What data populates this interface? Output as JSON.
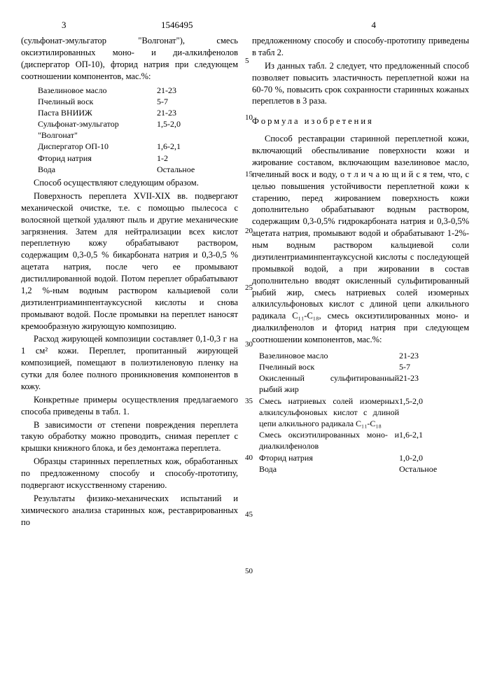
{
  "page_left_num": "3",
  "page_right_num": "4",
  "doc_number": "1546495",
  "line_markers": [
    "5",
    "10",
    "15",
    "20",
    "25",
    "30",
    "35",
    "40",
    "45",
    "50"
  ],
  "left": {
    "p1": "(сульфонат-эмульгатор \"Волгонат\"), смесь оксиэтилированных моно- и ди-алкилфенолов (диспергатор ОП-10), фторид натрия при следующем соотношении компонентов, мас.%:",
    "table1": [
      {
        "label": "Вазелиновое масло",
        "val": "21-23"
      },
      {
        "label": "Пчелиный воск",
        "val": "5-7"
      },
      {
        "label": "Паста ВНИИЖ",
        "val": "21-23"
      },
      {
        "label": "Сульфонат-эмульгатор \"Волгонат\"",
        "val": "1,5-2,0"
      },
      {
        "label": "Диспергатор ОП-10",
        "val": "1,6-2,1"
      },
      {
        "label": "Фторид натрия",
        "val": "1-2"
      },
      {
        "label": "Вода",
        "val": "Остальное"
      }
    ],
    "p2": "Способ осуществляют следующим образом.",
    "p3": "Поверхность переплета XVII-XIX вв. подвергают механической очистке, т.е. с помощью пылесоса с волосяной щеткой удаляют пыль и другие механические загрязнения. Затем для нейтрализации всех кислот переплетную кожу обрабатывают раствором, содержащим 0,3-0,5 % бикарбоната натрия и 0,3-0,5 % ацетата натрия, после чего ее промывают дистиллированной водой. Потом переплет обрабатывают 1,2 %-ным водным раствором кальциевой соли диэтилентриаминпентауксусной кислоты и снова промывают водой. После промывки на переплет наносят кремообразную жирующую композицию.",
    "p4": "Расход жирующей композиции составляет 0,1-0,3 г на 1 см² кожи. Переплет, пропитанный жирующей композицией, помещают в полиэтиленовую пленку на сутки для более полного проникновения компонентов в кожу.",
    "p5": "Конкретные примеры осуществления предлагаемого способа приведены в табл. 1.",
    "p6": "В зависимости от степени повреждения переплета такую обработку можно проводить, снимая переплет с крышки книжного блока, и без демонтажа переплета.",
    "p7": "Образцы старинных переплетных кож, обработанных по предложенному способу и способу-прототипу, подвергают искусственному старению.",
    "p8": "Результаты физико-механических испытаний и химического анализа старинных кож, реставрированных по"
  },
  "right": {
    "p1": "предложенному способу и способу-прототипу приведены в табл 2.",
    "p2": "Из данных табл. 2 следует, что предложенный способ позволяет повысить эластичность переплетной кожи на 60-70 %, повысить срок сохранности старинных кожаных переплетов в 3 раза.",
    "formula_header": "Формула изобретения",
    "p3": "Способ реставрации старинной переплетной кожи, включающий обеспыливание поверхности кожи и жирование составом, включающим вазелиновое масло, пчелиный воск и воду, о т л и ч а ю щ и й с я тем, что, с целью повышения устойчивости переплетной кожи к старению, перед жированием поверхность кожи дополнительно обрабатывают водным раствором, содержащим 0,3-0,5% гидрокарбоната натрия и 0,3-0,5% ацетата натрия, промывают водой и обрабатывают 1-2%-ным водным раствором кальциевой соли диэтилентриаминпентауксусной кислоты с последующей промывкой водой, а при жировании в состав дополнительно вводят окисленный сульфитированный рыбий жир, смесь натриевых солей изомерных алкилсульфоновых кислот с длиной цепи алкильного радикала C₁₁-C₁₈, смесь оксиэтилированных моно- и диалкилфенолов и фторид натрия при следующем соотношении компонентов, мас.%:",
    "table2": [
      {
        "label": "Вазелиновое масло",
        "val": "21-23"
      },
      {
        "label": "Пчелиный воск",
        "val": "5-7"
      },
      {
        "label": "Окисленный сульфитированный рыбий жир",
        "val": "21-23"
      },
      {
        "label": "Смесь натриевых солей изомерных алкилсульфоновых кислот с длиной цепи алкильного радикала C₁₁-C₁₈",
        "val": "1,5-2,0"
      },
      {
        "label": "Смесь оксиэтилированных моно- и диалкилфенолов",
        "val": "1,6-2,1"
      },
      {
        "label": "Фторид натрия",
        "val": "1,0-2,0"
      },
      {
        "label": "Вода",
        "val": "Остальное"
      }
    ]
  }
}
